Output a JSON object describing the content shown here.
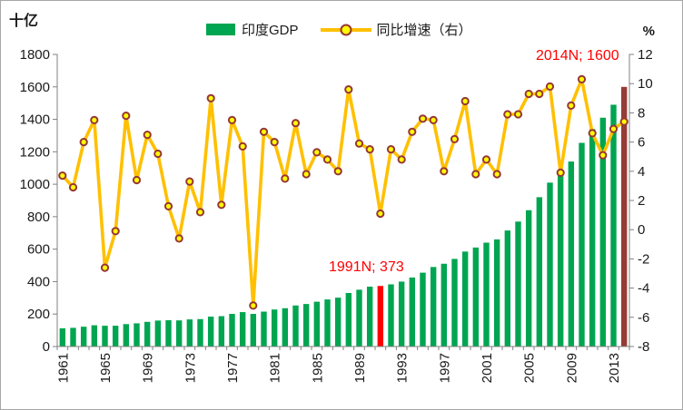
{
  "axes": {
    "left_unit": "十亿",
    "right_unit": "%"
  },
  "legend": {
    "items": [
      {
        "label": "印度GDP",
        "swatch": "bar"
      },
      {
        "label": "同比增速（右）",
        "swatch": "line"
      }
    ]
  },
  "annotations": [
    {
      "id": "1991",
      "text": "1991N; 373",
      "color": "#FF0000"
    },
    {
      "id": "2014",
      "text": "2014N; 1600",
      "color": "#FF0000"
    }
  ],
  "colors": {
    "bar": "#00A551",
    "bar_1991": "#FF0000",
    "bar_2014": "#963B35",
    "line": "#FFC000",
    "marker_fill": "#FFFF00",
    "marker_stroke": "#963634",
    "axis": "#808080",
    "text": "#1A1A1A"
  },
  "chart_data": {
    "type": "bar+line combo",
    "title": "",
    "legend_position": "top-center",
    "grid": false,
    "categories": [
      "1961",
      "1962",
      "1963",
      "1964",
      "1965",
      "1966",
      "1967",
      "1968",
      "1969",
      "1970",
      "1971",
      "1972",
      "1973",
      "1974",
      "1975",
      "1976",
      "1977",
      "1978",
      "1979",
      "1980",
      "1981",
      "1982",
      "1983",
      "1984",
      "1985",
      "1986",
      "1987",
      "1988",
      "1989",
      "1990",
      "1991",
      "1992",
      "1993",
      "1994",
      "1995",
      "1996",
      "1997",
      "1998",
      "1999",
      "2000",
      "2001",
      "2002",
      "2003",
      "2004",
      "2005",
      "2006",
      "2007",
      "2008",
      "2009",
      "2010",
      "2011",
      "2012",
      "2013",
      "2014"
    ],
    "series": [
      {
        "name": "印度GDP",
        "type": "bar",
        "axis": "left",
        "color": "#00A551",
        "highlights": {
          "1991": "#FF0000",
          "2014": "#963B35"
        },
        "values": [
          112,
          115,
          122,
          131,
          128,
          128,
          138,
          143,
          152,
          160,
          162,
          161,
          167,
          169,
          184,
          187,
          201,
          212,
          201,
          215,
          228,
          236,
          253,
          262,
          276,
          290,
          301,
          330,
          350,
          369,
          373,
          383,
          400,
          425,
          455,
          490,
          510,
          540,
          585,
          610,
          640,
          660,
          715,
          770,
          840,
          920,
          1010,
          1050,
          1140,
          1255,
          1340,
          1410,
          1490,
          1600
        ]
      },
      {
        "name": "同比增速（右）",
        "type": "line",
        "axis": "right",
        "color": "#FFC000",
        "marker_fill": "#FFFF00",
        "marker_stroke": "#963634",
        "values": [
          3.7,
          2.9,
          6.0,
          7.5,
          -2.6,
          -0.1,
          7.8,
          3.4,
          6.5,
          5.2,
          1.6,
          -0.6,
          3.3,
          1.2,
          9.0,
          1.7,
          7.5,
          5.7,
          -5.2,
          6.7,
          6.0,
          3.5,
          7.3,
          3.8,
          5.3,
          4.8,
          4.0,
          9.6,
          5.9,
          5.5,
          1.1,
          5.5,
          4.8,
          6.7,
          7.6,
          7.5,
          4.0,
          6.2,
          8.8,
          3.8,
          4.8,
          3.8,
          7.9,
          7.9,
          9.3,
          9.3,
          9.8,
          3.9,
          8.5,
          10.3,
          6.6,
          5.1,
          6.9,
          7.4
        ]
      }
    ],
    "left_axis": {
      "unit": "十亿",
      "min": 0,
      "max": 1800,
      "step": 200,
      "tick_labels": [
        "0",
        "200",
        "400",
        "600",
        "800",
        "1000",
        "1200",
        "1400",
        "1600",
        "1800"
      ]
    },
    "right_axis": {
      "unit": "%",
      "min": -8,
      "max": 12,
      "step": 2,
      "tick_labels": [
        "-8",
        "-6",
        "-4",
        "-2",
        "0",
        "2",
        "4",
        "6",
        "8",
        "10",
        "12"
      ]
    },
    "x_tick_labels": [
      "1961",
      "1965",
      "1969",
      "1973",
      "1977",
      "1981",
      "1985",
      "1989",
      "1993",
      "1997",
      "2001",
      "2005",
      "2009",
      "2013"
    ]
  }
}
